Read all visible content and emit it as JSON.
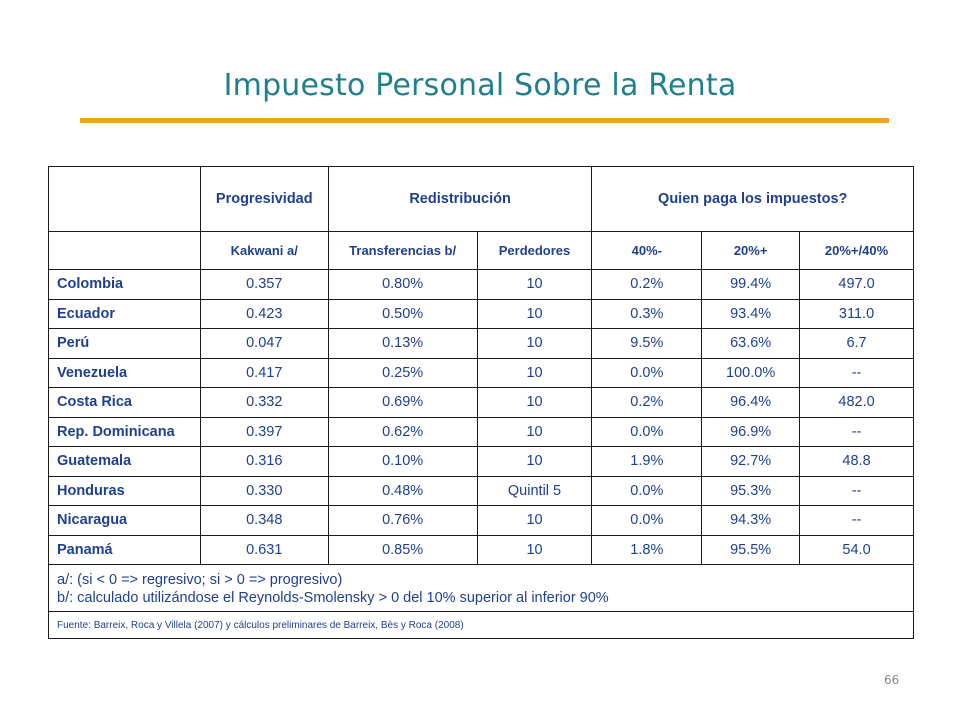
{
  "slide": {
    "title": "Impuesto Personal Sobre la Renta",
    "page_number": "66",
    "colors": {
      "title": "#1f7f8c",
      "rule": "#f3a21d",
      "table_text": "#1f3f8f"
    }
  },
  "table": {
    "group_headers": [
      "Progresividad",
      "Redistribución",
      "Quien paga los impuestos?"
    ],
    "sub_headers": [
      "Kakwani a/",
      "Transferencias b/",
      "Perdedores",
      "40%-",
      "20%+",
      "20%+/40%"
    ],
    "rows": [
      [
        "Colombia",
        "0.357",
        "0.80%",
        "10",
        "0.2%",
        "99.4%",
        "497.0"
      ],
      [
        "Ecuador",
        "0.423",
        "0.50%",
        "10",
        "0.3%",
        "93.4%",
        "311.0"
      ],
      [
        "Perú",
        "0.047",
        "0.13%",
        "10",
        "9.5%",
        "63.6%",
        "6.7"
      ],
      [
        "Venezuela",
        "0.417",
        "0.25%",
        "10",
        "0.0%",
        "100.0%",
        "--"
      ],
      [
        "Costa Rica",
        "0.332",
        "0.69%",
        "10",
        "0.2%",
        "96.4%",
        "482.0"
      ],
      [
        "Rep. Dominicana",
        "0.397",
        "0.62%",
        "10",
        "0.0%",
        "96.9%",
        "--"
      ],
      [
        "Guatemala",
        "0.316",
        "0.10%",
        "10",
        "1.9%",
        "92.7%",
        "48.8"
      ],
      [
        "Honduras",
        "0.330",
        "0.48%",
        "Quintil 5",
        "0.0%",
        "95.3%",
        "--"
      ],
      [
        "Nicaragua",
        "0.348",
        "0.76%",
        "10",
        "0.0%",
        "94.3%",
        "--"
      ],
      [
        "Panamá",
        "0.631",
        "0.85%",
        "10",
        "1.8%",
        "95.5%",
        "54.0"
      ]
    ],
    "notes": [
      "a/: (si < 0 => regresivo; si > 0 => progresivo)",
      "b/: calculado utilizándose el Reynolds-Smolensky > 0 del 10% superior al inferior 90%"
    ],
    "source": "Fuente: Barreix, Roca y Villela (2007) y cálculos preliminares de Barreix, Bès y Roca  (2008)"
  }
}
